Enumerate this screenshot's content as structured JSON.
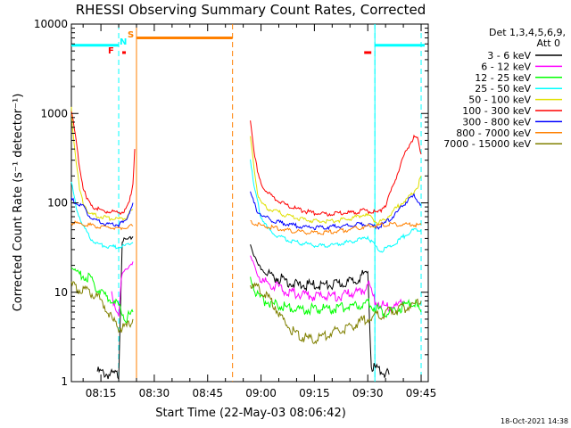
{
  "chart_data": {
    "type": "line",
    "title": "RHESSI Observing Summary Count Rates, Corrected",
    "xlabel": "Start Time (22-May-03 08:06:42)",
    "ylabel": "Corrected Count Rate (s⁻¹ detector⁻¹)",
    "y_scale": "log",
    "ylim": [
      1,
      10000
    ],
    "xlim": [
      "08:06:42",
      "09:47:00"
    ],
    "x_ticks": [
      "08:15",
      "08:30",
      "08:45",
      "09:00",
      "09:15",
      "09:30",
      "09:45"
    ],
    "y_ticks": [
      "1",
      "10",
      "100",
      "1000",
      "10000"
    ],
    "legend_header": [
      "Det 1,3,4,5,6,9,",
      "Att 0"
    ],
    "legend_position": "top-right, outside plot",
    "timestamp": "18-Oct-2021 14:38",
    "markers": [
      {
        "label": "F",
        "color": "#ff0000"
      },
      {
        "label": "N",
        "color": "#00ffff"
      },
      {
        "label": "S",
        "color": "#ff8000"
      }
    ],
    "night_interval_lines": {
      "color": "#00ffff",
      "times": [
        "08:20",
        "09:32",
        "09:45"
      ]
    },
    "saa_interval_lines": {
      "color": "#ff8000",
      "times": [
        "08:25",
        "08:52"
      ]
    },
    "orbit_bars": [
      {
        "color": "#00ffff",
        "from": "08:06:42",
        "to": "08:20",
        "level": 5800
      },
      {
        "color": "#ff8000",
        "from": "08:25",
        "to": "08:52",
        "level": 7000
      },
      {
        "color": "#00ffff",
        "from": "09:32",
        "to": "09:46",
        "level": 5800
      },
      {
        "color": "#ff0000",
        "from": "08:21",
        "to": "08:22",
        "level": 4800
      },
      {
        "color": "#ff0000",
        "from": "09:29",
        "to": "09:31",
        "level": 4800
      }
    ],
    "series": [
      {
        "name": "3 - 6 keV",
        "color": "#000000",
        "pre": [
          [
            "08:14",
            1.3
          ],
          [
            "08:17",
            1.2
          ],
          [
            "08:20",
            1.2
          ],
          [
            "08:21",
            38
          ],
          [
            "08:23",
            39
          ],
          [
            "08:24",
            42
          ]
        ],
        "post": [
          [
            "08:57",
            35
          ],
          [
            "08:59",
            20
          ],
          [
            "09:01",
            17
          ],
          [
            "09:03",
            15
          ],
          [
            "09:06",
            14
          ],
          [
            "09:10",
            12
          ],
          [
            "09:15",
            12
          ],
          [
            "09:20",
            12
          ],
          [
            "09:25",
            13
          ],
          [
            "09:28",
            15
          ],
          [
            "09:30",
            17
          ],
          [
            "09:31",
            1.5
          ],
          [
            "09:34",
            1.3
          ],
          [
            "09:36",
            1.2
          ]
        ]
      },
      {
        "name": "6 - 12 keV",
        "color": "#ff00ff",
        "pre": [
          [
            "08:18",
            9
          ],
          [
            "08:20",
            6
          ],
          [
            "08:21",
            16
          ],
          [
            "08:23",
            20
          ],
          [
            "08:24",
            22
          ]
        ],
        "post": [
          [
            "08:57",
            25
          ],
          [
            "08:59",
            16
          ],
          [
            "09:01",
            13
          ],
          [
            "09:04",
            12
          ],
          [
            "09:08",
            10
          ],
          [
            "09:15",
            9
          ],
          [
            "09:22",
            9
          ],
          [
            "09:27",
            10
          ],
          [
            "09:29",
            11
          ],
          [
            "09:30",
            13
          ],
          [
            "09:32",
            8
          ],
          [
            "09:35",
            7
          ],
          [
            "09:38",
            7
          ],
          [
            "09:40",
            8
          ]
        ]
      },
      {
        "name": "12 - 25 keV",
        "color": "#00ff00",
        "pre": [
          [
            "08:06:42",
            19
          ],
          [
            "08:09",
            16
          ],
          [
            "08:12",
            14
          ],
          [
            "08:15",
            10
          ],
          [
            "08:18",
            8
          ],
          [
            "08:20",
            7
          ],
          [
            "08:22",
            5
          ],
          [
            "08:24",
            6
          ]
        ],
        "post": [
          [
            "08:57",
            14
          ],
          [
            "08:59",
            9
          ],
          [
            "09:01",
            8
          ],
          [
            "09:05",
            7
          ],
          [
            "09:10",
            6.5
          ],
          [
            "09:15",
            6.5
          ],
          [
            "09:20",
            6.5
          ],
          [
            "09:25",
            7
          ],
          [
            "09:30",
            7.5
          ],
          [
            "09:34",
            6
          ],
          [
            "09:37",
            6
          ],
          [
            "09:40",
            7
          ],
          [
            "09:43",
            8
          ],
          [
            "09:45",
            6
          ]
        ]
      },
      {
        "name": "25 - 50 keV",
        "color": "#00ffff",
        "pre": [
          [
            "08:06:42",
            170
          ],
          [
            "08:08",
            90
          ],
          [
            "08:10",
            55
          ],
          [
            "08:12",
            40
          ],
          [
            "08:14",
            35
          ],
          [
            "08:17",
            32
          ],
          [
            "08:20",
            32
          ],
          [
            "08:22",
            33
          ],
          [
            "08:24",
            36
          ]
        ],
        "post": [
          [
            "08:57",
            320
          ],
          [
            "08:58",
            150
          ],
          [
            "09:00",
            70
          ],
          [
            "09:02",
            50
          ],
          [
            "09:05",
            42
          ],
          [
            "09:08",
            38
          ],
          [
            "09:12",
            35
          ],
          [
            "09:16",
            33
          ],
          [
            "09:20",
            34
          ],
          [
            "09:24",
            36
          ],
          [
            "09:27",
            38
          ],
          [
            "09:29",
            40
          ],
          [
            "09:30",
            42
          ],
          [
            "09:32",
            33
          ],
          [
            "09:34",
            29
          ],
          [
            "09:36",
            32
          ],
          [
            "09:38",
            36
          ],
          [
            "09:40",
            42
          ],
          [
            "09:42",
            48
          ],
          [
            "09:45",
            50
          ]
        ]
      },
      {
        "name": "50 - 100 keV",
        "color": "#e0e000",
        "pre": [
          [
            "08:06:42",
            1200
          ],
          [
            "08:07",
            700
          ],
          [
            "08:08",
            300
          ],
          [
            "08:09",
            140
          ],
          [
            "08:10",
            100
          ],
          [
            "08:12",
            75
          ],
          [
            "08:14",
            72
          ],
          [
            "08:17",
            68
          ],
          [
            "08:20",
            65
          ],
          [
            "08:22",
            68
          ],
          [
            "08:24",
            85
          ]
        ],
        "post": [
          [
            "08:57",
            550
          ],
          [
            "08:58",
            250
          ],
          [
            "08:59",
            130
          ],
          [
            "09:00",
            100
          ],
          [
            "09:02",
            85
          ],
          [
            "09:05",
            78
          ],
          [
            "09:08",
            70
          ],
          [
            "09:12",
            65
          ],
          [
            "09:16",
            62
          ],
          [
            "09:20",
            63
          ],
          [
            "09:24",
            65
          ],
          [
            "09:27",
            70
          ],
          [
            "09:29",
            75
          ],
          [
            "09:31",
            68
          ],
          [
            "09:33",
            60
          ],
          [
            "09:35",
            65
          ],
          [
            "09:37",
            80
          ],
          [
            "09:39",
            95
          ],
          [
            "09:41",
            110
          ],
          [
            "09:44",
            150
          ],
          [
            "09:45",
            200
          ]
        ]
      },
      {
        "name": "100 - 300 keV",
        "color": "#ff0000",
        "pre": [
          [
            "08:06:42",
            1100
          ],
          [
            "08:07",
            900
          ],
          [
            "08:08",
            500
          ],
          [
            "08:09",
            250
          ],
          [
            "08:10",
            150
          ],
          [
            "08:11",
            110
          ],
          [
            "08:13",
            90
          ],
          [
            "08:15",
            82
          ],
          [
            "08:18",
            80
          ],
          [
            "08:20",
            78
          ],
          [
            "08:22",
            82
          ],
          [
            "08:23",
            100
          ],
          [
            "08:24",
            170
          ],
          [
            "08:24:30",
            400
          ]
        ],
        "post": [
          [
            "08:57",
            850
          ],
          [
            "08:58",
            400
          ],
          [
            "08:59",
            220
          ],
          [
            "09:00",
            160
          ],
          [
            "09:02",
            130
          ],
          [
            "09:04",
            110
          ],
          [
            "09:07",
            95
          ],
          [
            "09:10",
            85
          ],
          [
            "09:14",
            78
          ],
          [
            "09:18",
            75
          ],
          [
            "09:22",
            76
          ],
          [
            "09:26",
            78
          ],
          [
            "09:29",
            82
          ],
          [
            "09:31",
            80
          ],
          [
            "09:33",
            78
          ],
          [
            "09:35",
            95
          ],
          [
            "09:37",
            150
          ],
          [
            "09:39",
            250
          ],
          [
            "09:41",
            400
          ],
          [
            "09:43",
            550
          ],
          [
            "09:44",
            520
          ],
          [
            "09:45",
            350
          ]
        ]
      },
      {
        "name": "300 - 800 keV",
        "color": "#0000ff",
        "pre": [
          [
            "08:06:42",
            110
          ],
          [
            "08:08",
            100
          ],
          [
            "08:10",
            90
          ],
          [
            "08:12",
            70
          ],
          [
            "08:14",
            62
          ],
          [
            "08:17",
            58
          ],
          [
            "08:20",
            57
          ],
          [
            "08:22",
            62
          ],
          [
            "08:23",
            80
          ],
          [
            "08:24",
            100
          ]
        ],
        "post": [
          [
            "08:57",
            130
          ],
          [
            "08:58",
            100
          ],
          [
            "08:59",
            80
          ],
          [
            "09:01",
            70
          ],
          [
            "09:04",
            62
          ],
          [
            "09:08",
            57
          ],
          [
            "09:12",
            54
          ],
          [
            "09:16",
            53
          ],
          [
            "09:20",
            54
          ],
          [
            "09:24",
            55
          ],
          [
            "09:27",
            57
          ],
          [
            "09:29",
            58
          ],
          [
            "09:31",
            55
          ],
          [
            "09:33",
            54
          ],
          [
            "09:35",
            60
          ],
          [
            "09:37",
            70
          ],
          [
            "09:39",
            85
          ],
          [
            "09:41",
            105
          ],
          [
            "09:43",
            120
          ],
          [
            "09:45",
            95
          ]
        ]
      },
      {
        "name": "800 - 7000 keV",
        "color": "#ff8000",
        "pre": [
          [
            "08:06:42",
            60
          ],
          [
            "08:08",
            59
          ],
          [
            "08:10",
            58
          ],
          [
            "08:12",
            56
          ],
          [
            "08:14",
            55
          ],
          [
            "08:16",
            54
          ],
          [
            "08:18",
            53
          ],
          [
            "08:20",
            52
          ],
          [
            "08:22",
            53
          ],
          [
            "08:24",
            55
          ]
        ],
        "post": [
          [
            "08:57",
            60
          ],
          [
            "08:59",
            57
          ],
          [
            "09:01",
            55
          ],
          [
            "09:04",
            52
          ],
          [
            "09:08",
            49
          ],
          [
            "09:12",
            47
          ],
          [
            "09:16",
            46
          ],
          [
            "09:20",
            47
          ],
          [
            "09:24",
            50
          ],
          [
            "09:28",
            53
          ],
          [
            "09:32",
            56
          ],
          [
            "09:36",
            57
          ],
          [
            "09:40",
            57
          ],
          [
            "09:45",
            57
          ]
        ]
      },
      {
        "name": "7000 - 15000 keV",
        "color": "#808000",
        "pre": [
          [
            "08:06:42",
            12
          ],
          [
            "08:08",
            11
          ],
          [
            "08:10",
            10.5
          ],
          [
            "08:12",
            10
          ],
          [
            "08:14",
            9
          ],
          [
            "08:16",
            7
          ],
          [
            "08:18",
            5
          ],
          [
            "08:20",
            4
          ],
          [
            "08:22",
            4
          ],
          [
            "08:24",
            5
          ]
        ],
        "post": [
          [
            "08:57",
            12
          ],
          [
            "08:59",
            11
          ],
          [
            "09:01",
            10
          ],
          [
            "09:04",
            7
          ],
          [
            "09:06",
            5
          ],
          [
            "09:08",
            4
          ],
          [
            "09:10",
            3.5
          ],
          [
            "09:13",
            3
          ],
          [
            "09:16",
            3
          ],
          [
            "09:20",
            3.5
          ],
          [
            "09:24",
            4
          ],
          [
            "09:27",
            4.5
          ],
          [
            "09:30",
            5
          ],
          [
            "09:33",
            5.5
          ],
          [
            "09:36",
            6
          ],
          [
            "09:39",
            6.5
          ],
          [
            "09:42",
            7
          ],
          [
            "09:45",
            8
          ]
        ]
      }
    ]
  }
}
